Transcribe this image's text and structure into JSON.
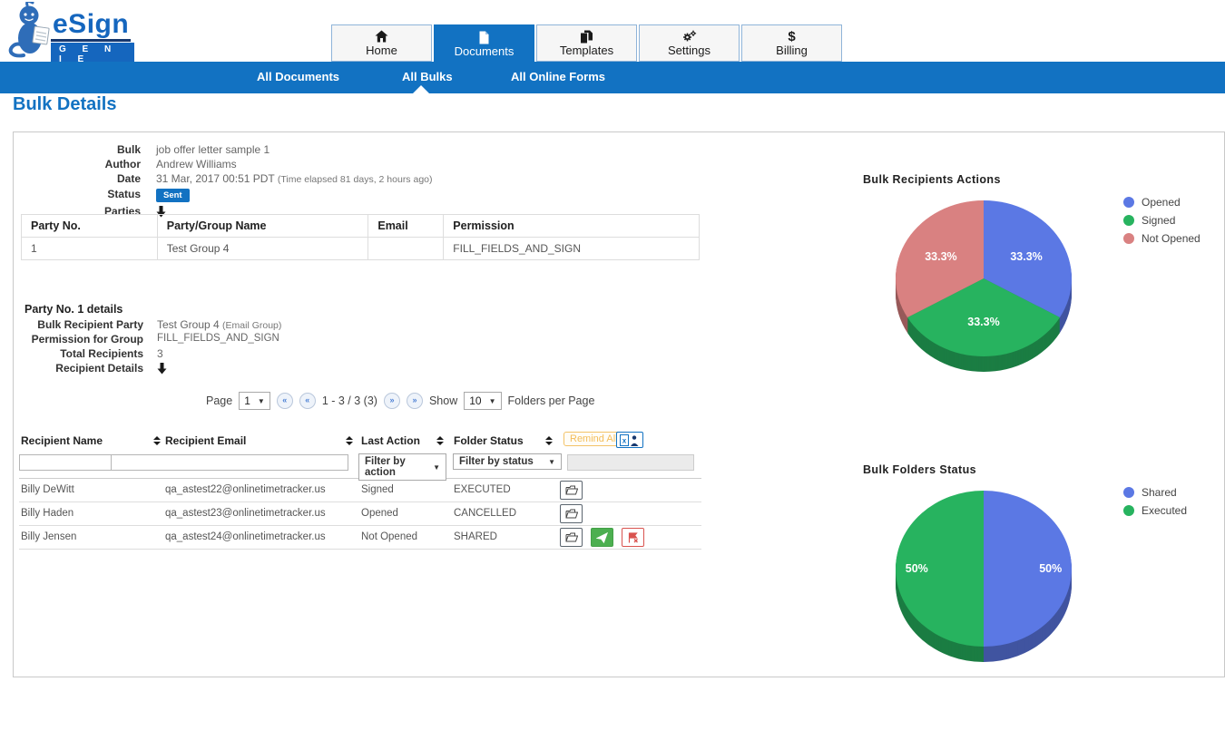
{
  "brand": {
    "name": "eSign",
    "tagline": "G E N I E"
  },
  "nav": {
    "tabs": [
      {
        "label": "Home",
        "icon": "home-icon"
      },
      {
        "label": "Documents",
        "icon": "document-icon"
      },
      {
        "label": "Templates",
        "icon": "templates-icon"
      },
      {
        "label": "Settings",
        "icon": "settings-icon"
      },
      {
        "label": "Billing",
        "icon": "billing-icon"
      }
    ],
    "active_tab": "Documents"
  },
  "subnav": {
    "items": [
      {
        "label": "All Documents"
      },
      {
        "label": "All Bulks"
      },
      {
        "label": "All Online Forms"
      }
    ],
    "active_item": "All Bulks"
  },
  "page_title": "Bulk Details",
  "bulk_info": {
    "bulk_label": "Bulk",
    "bulk_value": "job offer letter sample 1",
    "author_label": "Author",
    "author_value": "Andrew Williams",
    "date_label": "Date",
    "date_value": "31 Mar, 2017 00:51 PDT",
    "date_note": "(Time elapsed 81 days, 2 hours ago)",
    "status_label": "Status",
    "status_value": "Sent",
    "parties_label": "Parties"
  },
  "party_table": {
    "headers": [
      "Party No.",
      "Party/Group Name",
      "Email",
      "Permission"
    ],
    "rows": [
      {
        "no": "1",
        "name": "Test Group 4",
        "email": "",
        "permission": "FILL_FIELDS_AND_SIGN"
      }
    ]
  },
  "party_details": {
    "title": "Party No. 1 details",
    "recipient_party_label": "Bulk Recipient Party",
    "recipient_party_value": "Test Group 4",
    "recipient_party_note": "(Email Group)",
    "permission_label": "Permission for Group",
    "permission_value": "FILL_FIELDS_AND_SIGN",
    "total_label": "Total Recipients",
    "total_value": "3",
    "details_label": "Recipient Details"
  },
  "pagination": {
    "page_label": "Page",
    "page_value": "1",
    "range_text": "1 - 3 / 3 (3)",
    "show_label": "Show",
    "show_value": "10",
    "per_page_label": "Folders per Page",
    "first_glyph": "«",
    "prev_glyph": "«",
    "next_glyph": "»",
    "last_glyph": "»"
  },
  "recipient_table": {
    "headers": [
      "Recipient Name",
      "Recipient Email",
      "Last Action",
      "Folder Status"
    ],
    "remind_all_label": "Remind All",
    "filters": {
      "action_value": "Filter by action",
      "status_value": "Filter by status"
    },
    "rows": [
      {
        "name": "Billy DeWitt",
        "email": "qa_astest22@onlinetimetracker.us",
        "last_action": "Signed",
        "folder_status": "EXECUTED"
      },
      {
        "name": "Billy Haden",
        "email": "qa_astest23@onlinetimetracker.us",
        "last_action": "Opened",
        "folder_status": "CANCELLED"
      },
      {
        "name": "Billy Jensen",
        "email": "qa_astest24@onlinetimetracker.us",
        "last_action": "Not Opened",
        "folder_status": "SHARED"
      }
    ]
  },
  "colors": {
    "accent": "#1272c2",
    "pie_blue": "#5b78e4",
    "pie_green": "#27b35f",
    "pie_salmon": "#d98181",
    "remind_orange": "#f3bd5a"
  },
  "chart_data": [
    {
      "type": "pie",
      "title": "Bulk Recipients Actions",
      "effect": "3d",
      "legend_position": "right",
      "slices": [
        {
          "label": "Opened",
          "value": 33.33,
          "display": "33.3%",
          "color": "#5b78e4"
        },
        {
          "label": "Signed",
          "value": 33.33,
          "display": "33.3%",
          "color": "#27b35f"
        },
        {
          "label": "Not Opened",
          "value": 33.34,
          "display": "33.3%",
          "color": "#d98181"
        }
      ]
    },
    {
      "type": "pie",
      "title": "Bulk Folders Status",
      "effect": "3d",
      "legend_position": "right",
      "slices": [
        {
          "label": "Shared",
          "value": 50,
          "display": "50%",
          "color": "#5b78e4"
        },
        {
          "label": "Executed",
          "value": 50,
          "display": "50%",
          "color": "#27b35f"
        }
      ]
    }
  ]
}
